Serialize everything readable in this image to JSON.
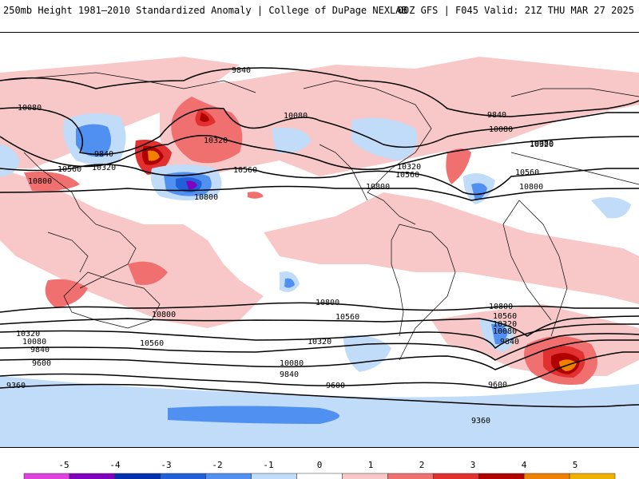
{
  "header": {
    "title": "250mb Height 1981–2010 Standardized Anomaly | College of DuPage NEXLAB",
    "run_info": "00Z GFS | F045 Valid: 21Z THU MAR 27 2025"
  },
  "colorbar": {
    "ticks": [
      "-5",
      "-4",
      "-3",
      "-2",
      "-1",
      "0",
      "1",
      "2",
      "3",
      "4",
      "5"
    ],
    "colors": [
      "#e040e0",
      "#8000c0",
      "#0030b0",
      "#2060d8",
      "#5090f0",
      "#c0dcf8",
      "#ffffff",
      "#f8c8c8",
      "#f07070",
      "#e03030",
      "#b00000",
      "#f08000",
      "#f0b000"
    ]
  },
  "contour_labels": [
    {
      "text": "9840"
    },
    {
      "text": "10080"
    },
    {
      "text": "10320"
    },
    {
      "text": "10560"
    },
    {
      "text": "10800"
    },
    {
      "text": "9840"
    },
    {
      "text": "10080"
    },
    {
      "text": "10320"
    },
    {
      "text": "10560"
    },
    {
      "text": "10800"
    },
    {
      "text": "10080"
    },
    {
      "text": "10320"
    },
    {
      "text": "10560"
    },
    {
      "text": "10800"
    },
    {
      "text": "9840"
    },
    {
      "text": "10080"
    },
    {
      "text": "10320"
    },
    {
      "text": "10560"
    },
    {
      "text": "10800"
    },
    {
      "text": "10800"
    },
    {
      "text": "10560"
    },
    {
      "text": "10320"
    },
    {
      "text": "10080"
    },
    {
      "text": "9840"
    },
    {
      "text": "9600"
    },
    {
      "text": "9360"
    },
    {
      "text": "10800"
    },
    {
      "text": "10560"
    },
    {
      "text": "10320"
    },
    {
      "text": "10080"
    },
    {
      "text": "9840"
    },
    {
      "text": "9600"
    },
    {
      "text": "10800"
    },
    {
      "text": "10560"
    },
    {
      "text": "10320"
    },
    {
      "text": "10080"
    },
    {
      "text": "9840"
    },
    {
      "text": "9600"
    },
    {
      "text": "9360"
    }
  ]
}
